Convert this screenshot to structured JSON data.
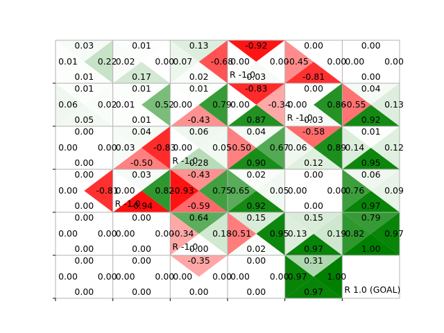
{
  "chart_data": {
    "type": "heatmap",
    "title": "",
    "xlabel": "",
    "ylabel": "",
    "grid": true,
    "rows": 6,
    "cols": 6,
    "color_scale": {
      "negative": "#ff0000",
      "zero": "#ffffff",
      "positive": "#008000"
    },
    "q_values": [
      [
        {
          "up": 0.03,
          "left": 0.01,
          "right": 0.22,
          "down": 0.01
        },
        {
          "up": 0.01,
          "left": 0.02,
          "right": 0.0,
          "down": 0.17
        },
        {
          "up": 0.13,
          "left": 0.07,
          "right": -0.68,
          "down": 0.02
        },
        {
          "up": -0.92,
          "left": 0.0,
          "right": 0.0,
          "down": 0.03
        },
        {
          "up": 0.0,
          "left": -0.45,
          "right": 0.0,
          "down": -0.81
        },
        {
          "up": 0.0,
          "left": 0.0,
          "right": 0.0,
          "down": 0.0
        }
      ],
      [
        {
          "up": 0.01,
          "left": 0.06,
          "right": 0.02,
          "down": 0.05
        },
        {
          "up": 0.01,
          "left": 0.01,
          "right": 0.52,
          "down": 0.01
        },
        {
          "up": 0.01,
          "left": 0.0,
          "right": 0.79,
          "down": -0.43
        },
        {
          "up": -0.83,
          "left": 0.0,
          "right": -0.34,
          "down": 0.87
        },
        {
          "up": 0.0,
          "left": 0.0,
          "right": 0.86,
          "down": 0.03
        },
        {
          "up": 0.04,
          "left": -0.55,
          "right": 0.13,
          "down": 0.92
        }
      ],
      [
        {
          "up": 0.0,
          "left": 0.0,
          "right": 0.0,
          "down": 0.0
        },
        {
          "up": 0.04,
          "left": 0.03,
          "right": -0.83,
          "down": -0.5
        },
        {
          "up": 0.06,
          "left": 0.0,
          "right": 0.05,
          "down": 0.28
        },
        {
          "up": 0.04,
          "left": -0.5,
          "right": 0.67,
          "down": 0.9
        },
        {
          "up": -0.58,
          "left": 0.06,
          "right": 0.89,
          "down": 0.12
        },
        {
          "up": 0.01,
          "left": 0.14,
          "right": 0.12,
          "down": 0.95
        }
      ],
      [
        {
          "up": 0.0,
          "left": 0.0,
          "right": -0.81,
          "down": 0.0
        },
        {
          "up": 0.03,
          "left": 0.0,
          "right": 0.82,
          "down": -0.94
        },
        {
          "up": -0.43,
          "left": -0.93,
          "right": 0.75,
          "down": -0.59
        },
        {
          "up": 0.02,
          "left": 0.65,
          "right": 0.05,
          "down": 0.92
        },
        {
          "up": 0.0,
          "left": 0.0,
          "right": 0.0,
          "down": 0.0
        },
        {
          "up": 0.06,
          "left": 0.76,
          "right": 0.09,
          "down": 0.97
        }
      ],
      [
        {
          "up": 0.0,
          "left": 0.0,
          "right": 0.0,
          "down": 0.0
        },
        {
          "up": 0.0,
          "left": 0.0,
          "right": 0.0,
          "down": 0.0
        },
        {
          "up": 0.64,
          "left": -0.34,
          "right": 0.18,
          "down": 0.0
        },
        {
          "up": 0.15,
          "left": -0.51,
          "right": 0.95,
          "down": 0.02
        },
        {
          "up": 0.15,
          "left": 0.13,
          "right": 0.19,
          "down": 0.97
        },
        {
          "up": 0.79,
          "left": 0.82,
          "right": 0.97,
          "down": 1.0
        }
      ],
      [
        {
          "up": 0.0,
          "left": 0.0,
          "right": 0.0,
          "down": 0.0
        },
        {
          "up": 0.0,
          "left": 0.0,
          "right": 0.0,
          "down": 0.0
        },
        {
          "up": -0.35,
          "left": 0.0,
          "right": 0.0,
          "down": 0.0
        },
        {
          "up": 0.0,
          "left": 0.0,
          "right": 0.0,
          "down": 0.0
        },
        {
          "up": 0.31,
          "left": 0.97,
          "right": 1.0,
          "down": 0.97
        },
        null
      ]
    ],
    "rewards": [
      {
        "row": 0,
        "col": 3,
        "label": "R -1.0"
      },
      {
        "row": 1,
        "col": 4,
        "label": "R -1.0"
      },
      {
        "row": 2,
        "col": 2,
        "label": "R -1.0"
      },
      {
        "row": 3,
        "col": 1,
        "label": "R -1.0"
      },
      {
        "row": 4,
        "col": 2,
        "label": "R -1.0"
      },
      {
        "row": 5,
        "col": 5,
        "label": "R 1.0 (GOAL)"
      }
    ]
  }
}
